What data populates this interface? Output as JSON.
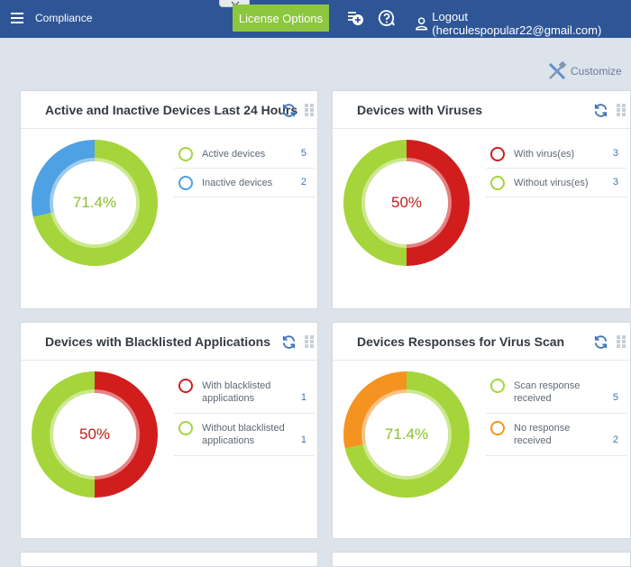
{
  "header": {
    "title": "Compliance",
    "license_button": "License Options",
    "logout_text": "Logout (herculespopular22@gmail.com)"
  },
  "customize_label": "Customize",
  "colors": {
    "header_bg": "#2e5696",
    "green": "#a5d53a",
    "blue": "#4ea1e2",
    "red": "#d21d1d",
    "orange": "#f59321",
    "license_button_bg": "#8dc63f"
  },
  "cards": [
    {
      "title": "Active and Inactive Devices Last 24 Hours",
      "center_label": "71.4%",
      "center_color": "#8cbf2a",
      "legend": [
        {
          "label": "Active devices",
          "count": "5",
          "color": "#a5d53a"
        },
        {
          "label": "Inactive devices",
          "count": "2",
          "color": "#4ea1e2"
        }
      ]
    },
    {
      "title": "Devices with Viruses",
      "center_label": "50%",
      "center_color": "#c0201b",
      "legend": [
        {
          "label": "With virus(es)",
          "count": "3",
          "color": "#d21d1d"
        },
        {
          "label": "Without virus(es)",
          "count": "3",
          "color": "#a5d53a"
        }
      ]
    },
    {
      "title": "Devices with Blacklisted Applications",
      "center_label": "50%",
      "center_color": "#c0201b",
      "legend": [
        {
          "label": "With blacklisted applications",
          "count": "1",
          "color": "#d21d1d"
        },
        {
          "label": "Without blacklisted applications",
          "count": "1",
          "color": "#a5d53a"
        }
      ]
    },
    {
      "title": "Devices Responses for Virus Scan",
      "center_label": "71.4%",
      "center_color": "#8cbf2a",
      "legend": [
        {
          "label": "Scan response received",
          "count": "5",
          "color": "#a5d53a"
        },
        {
          "label": "No response received",
          "count": "2",
          "color": "#f59321"
        }
      ]
    }
  ],
  "chart_data": [
    {
      "type": "pie",
      "categories": [
        "Active devices",
        "Inactive devices"
      ],
      "values": [
        5,
        2
      ],
      "colors": [
        "#a5d53a",
        "#4ea1e2"
      ],
      "title": "Active and Inactive Devices Last 24 Hours"
    },
    {
      "type": "pie",
      "categories": [
        "With virus(es)",
        "Without virus(es)"
      ],
      "values": [
        3,
        3
      ],
      "colors": [
        "#d21d1d",
        "#a5d53a"
      ],
      "title": "Devices with Viruses"
    },
    {
      "type": "pie",
      "categories": [
        "With blacklisted applications",
        "Without blacklisted applications"
      ],
      "values": [
        1,
        1
      ],
      "colors": [
        "#d21d1d",
        "#a5d53a"
      ],
      "title": "Devices with Blacklisted Applications"
    },
    {
      "type": "pie",
      "categories": [
        "Scan response received",
        "No response received"
      ],
      "values": [
        5,
        2
      ],
      "colors": [
        "#a5d53a",
        "#f59321"
      ],
      "title": "Devices Responses for Virus Scan"
    }
  ]
}
